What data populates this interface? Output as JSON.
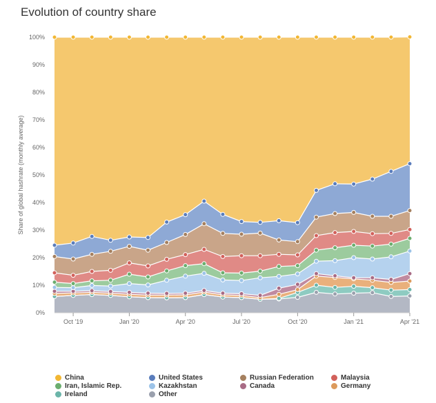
{
  "page": {
    "title": "Evolution of country share"
  },
  "chart_data": {
    "type": "area",
    "stacked": true,
    "title": "Evolution of country share",
    "xlabel": "",
    "ylabel": "Share of global hashrate (monthly average)",
    "ylim": [
      0,
      100
    ],
    "y_ticks": [
      "0%",
      "10%",
      "20%",
      "30%",
      "40%",
      "50%",
      "60%",
      "70%",
      "80%",
      "90%",
      "100%"
    ],
    "x_ticks": [
      "Oct '19",
      "Jan '20",
      "Apr '20",
      "Jul '20",
      "Oct '20",
      "Jan '21",
      "Apr '21"
    ],
    "x": [
      "Sep '19",
      "Oct '19",
      "Nov '19",
      "Dec '19",
      "Jan '20",
      "Feb '20",
      "Mar '20",
      "Apr '20",
      "May '20",
      "Jun '20",
      "Jul '20",
      "Aug '20",
      "Sep '20",
      "Oct '20",
      "Nov '20",
      "Dec '20",
      "Jan '21",
      "Feb '21",
      "Mar '21",
      "Apr '21"
    ],
    "legend_position": "bottom",
    "grid": true,
    "series": [
      {
        "name": "Other",
        "color": "#b3b8c4",
        "values": [
          5.9,
          6.3,
          6.6,
          6.3,
          5.8,
          5.5,
          5.4,
          5.5,
          6.6,
          5.7,
          5.5,
          4.9,
          5.0,
          5.6,
          7.4,
          6.8,
          7.1,
          7.3,
          5.9,
          6.1
        ]
      },
      {
        "name": "Ireland",
        "color": "#8ecbc1",
        "values": [
          0.0,
          0.0,
          0.0,
          0.0,
          0.0,
          0.0,
          0.0,
          0.0,
          0.0,
          0.0,
          0.0,
          0.0,
          0.2,
          1.8,
          2.6,
          2.4,
          2.5,
          1.8,
          2.3,
          2.3
        ]
      },
      {
        "name": "Germany",
        "color": "#e9b07c",
        "values": [
          1.1,
          0.9,
          0.8,
          0.8,
          0.9,
          0.9,
          1.0,
          1.0,
          0.9,
          0.8,
          0.8,
          0.6,
          1.5,
          1.0,
          3.3,
          3.6,
          2.7,
          2.7,
          2.8,
          3.1
        ]
      },
      {
        "name": "Canada",
        "color": "#c08aa0",
        "values": [
          0.8,
          0.6,
          0.6,
          0.6,
          0.7,
          0.7,
          0.6,
          0.6,
          0.6,
          0.6,
          0.6,
          0.8,
          2.2,
          1.9,
          0.9,
          0.6,
          0.4,
          0.9,
          1.1,
          2.7
        ]
      },
      {
        "name": "Kazakhstan",
        "color": "#b5d2ee",
        "values": [
          1.4,
          1.3,
          1.9,
          2.0,
          3.2,
          3.0,
          4.8,
          6.2,
          6.2,
          4.8,
          4.8,
          6.4,
          4.3,
          3.8,
          4.5,
          5.5,
          7.3,
          6.8,
          8.2,
          8.2
        ]
      },
      {
        "name": "Iran, Islamic Rep.",
        "color": "#9ccb9e",
        "values": [
          1.9,
          1.5,
          1.7,
          2.1,
          3.4,
          2.9,
          3.4,
          3.8,
          3.5,
          2.6,
          2.7,
          2.4,
          3.6,
          3.0,
          4.0,
          4.7,
          4.5,
          4.7,
          4.6,
          4.6
        ]
      },
      {
        "name": "Malaysia",
        "color": "#e08a86",
        "values": [
          3.4,
          3.0,
          3.4,
          3.6,
          4.1,
          4.0,
          4.2,
          4.0,
          5.2,
          5.9,
          6.3,
          5.6,
          4.4,
          3.9,
          5.3,
          5.5,
          5.0,
          4.5,
          3.9,
          3.2
        ]
      },
      {
        "name": "Russian Federation",
        "color": "#c9a589",
        "values": [
          5.9,
          5.9,
          6.2,
          6.9,
          6.0,
          5.7,
          6.1,
          7.3,
          9.3,
          8.4,
          7.8,
          8.2,
          5.2,
          4.8,
          6.7,
          6.9,
          6.9,
          6.3,
          6.2,
          6.9
        ]
      },
      {
        "name": "United States",
        "color": "#8ea9d5",
        "values": [
          4.1,
          5.8,
          6.5,
          4.0,
          3.4,
          4.6,
          7.4,
          7.2,
          8.2,
          6.9,
          4.6,
          3.9,
          7.0,
          6.9,
          9.7,
          10.8,
          10.3,
          13.5,
          16.3,
          17.0
        ]
      },
      {
        "name": "China",
        "color": "#f5c86e",
        "values": [
          75.5,
          74.7,
          72.3,
          73.7,
          72.5,
          72.7,
          67.1,
          64.4,
          59.5,
          64.3,
          66.9,
          67.2,
          66.6,
          67.3,
          55.6,
          53.2,
          53.3,
          51.5,
          48.7,
          46.0
        ]
      }
    ]
  },
  "legend": [
    {
      "name": "China",
      "color": "#f2b733"
    },
    {
      "name": "United States",
      "color": "#5a7dbc"
    },
    {
      "name": "Russian Federation",
      "color": "#a5805f"
    },
    {
      "name": "Malaysia",
      "color": "#d2615b"
    },
    {
      "name": "Iran, Islamic Rep.",
      "color": "#6cae6f"
    },
    {
      "name": "Kazakhstan",
      "color": "#9cc3e8"
    },
    {
      "name": "Canada",
      "color": "#a86b85"
    },
    {
      "name": "Germany",
      "color": "#dc9a5c"
    },
    {
      "name": "Ireland",
      "color": "#6bb5a9"
    },
    {
      "name": "Other",
      "color": "#9aa0ad"
    }
  ]
}
